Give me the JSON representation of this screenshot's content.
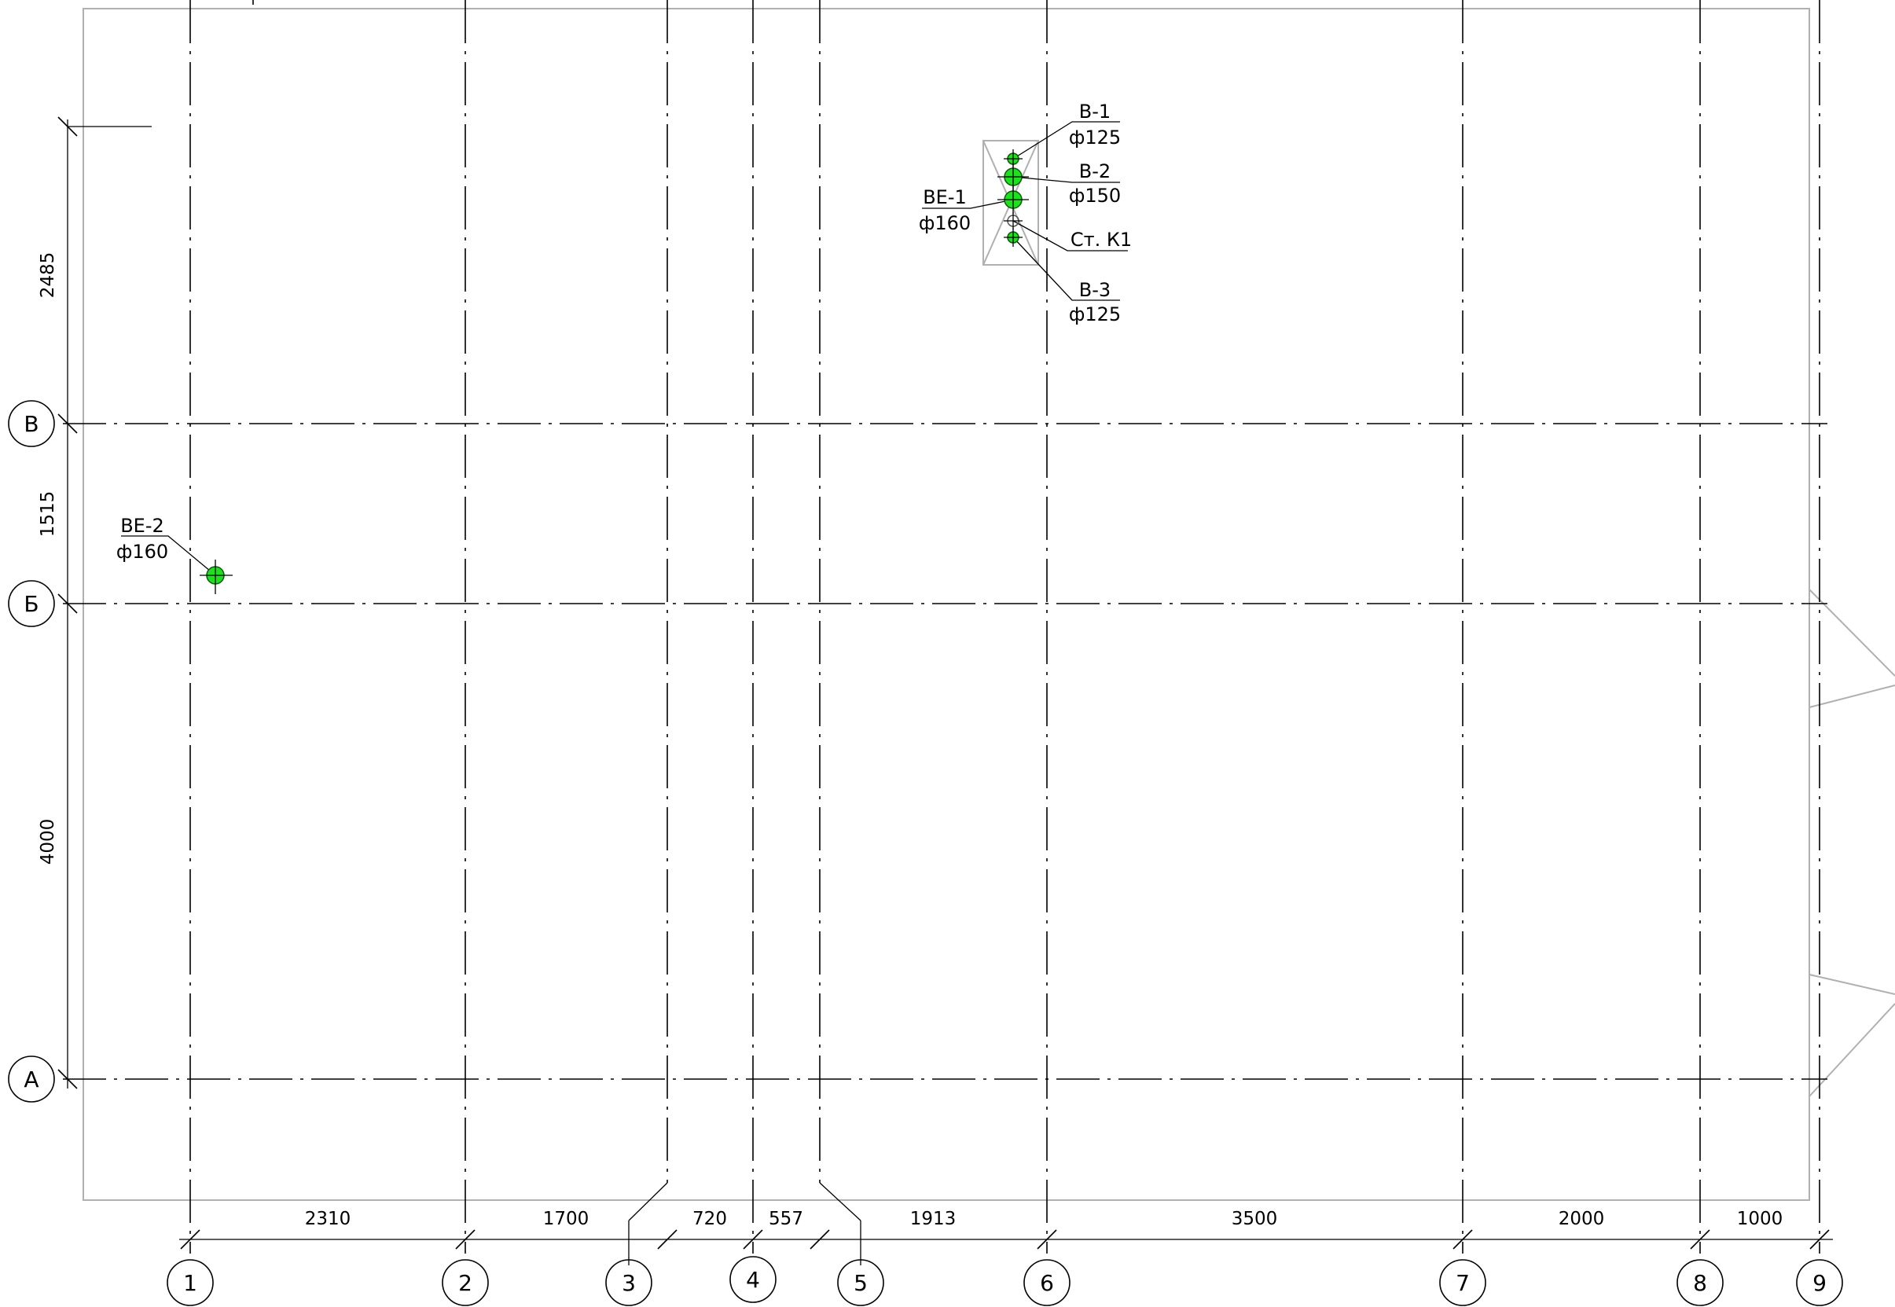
{
  "grid": {
    "vertical_axes": [
      "1",
      "2",
      "3",
      "4",
      "5",
      "6",
      "7",
      "8",
      "9"
    ],
    "horizontal_axes": [
      "В",
      "Б",
      "А"
    ]
  },
  "dimensions": {
    "horizontal": [
      "2310",
      "1700",
      "720",
      "557",
      "1913",
      "3500",
      "2000",
      "1000"
    ],
    "vertical": [
      "2485",
      "1515",
      "4000"
    ]
  },
  "pipes": [
    {
      "tag": "В-1",
      "diameter": "ф125"
    },
    {
      "tag": "В-2",
      "diameter": "ф150"
    },
    {
      "tag": "ВЕ-1",
      "diameter": "ф160"
    },
    {
      "tag": "Ст. К1",
      "diameter": ""
    },
    {
      "tag": "В-3",
      "diameter": "ф125"
    },
    {
      "tag": "ВЕ-2",
      "diameter": "ф160"
    }
  ],
  "colors": {
    "line": "#000000",
    "outline": "#b0b0b0",
    "pipe_fill": "#1ee01e",
    "pipe_stroke": "#0a5a0a"
  }
}
